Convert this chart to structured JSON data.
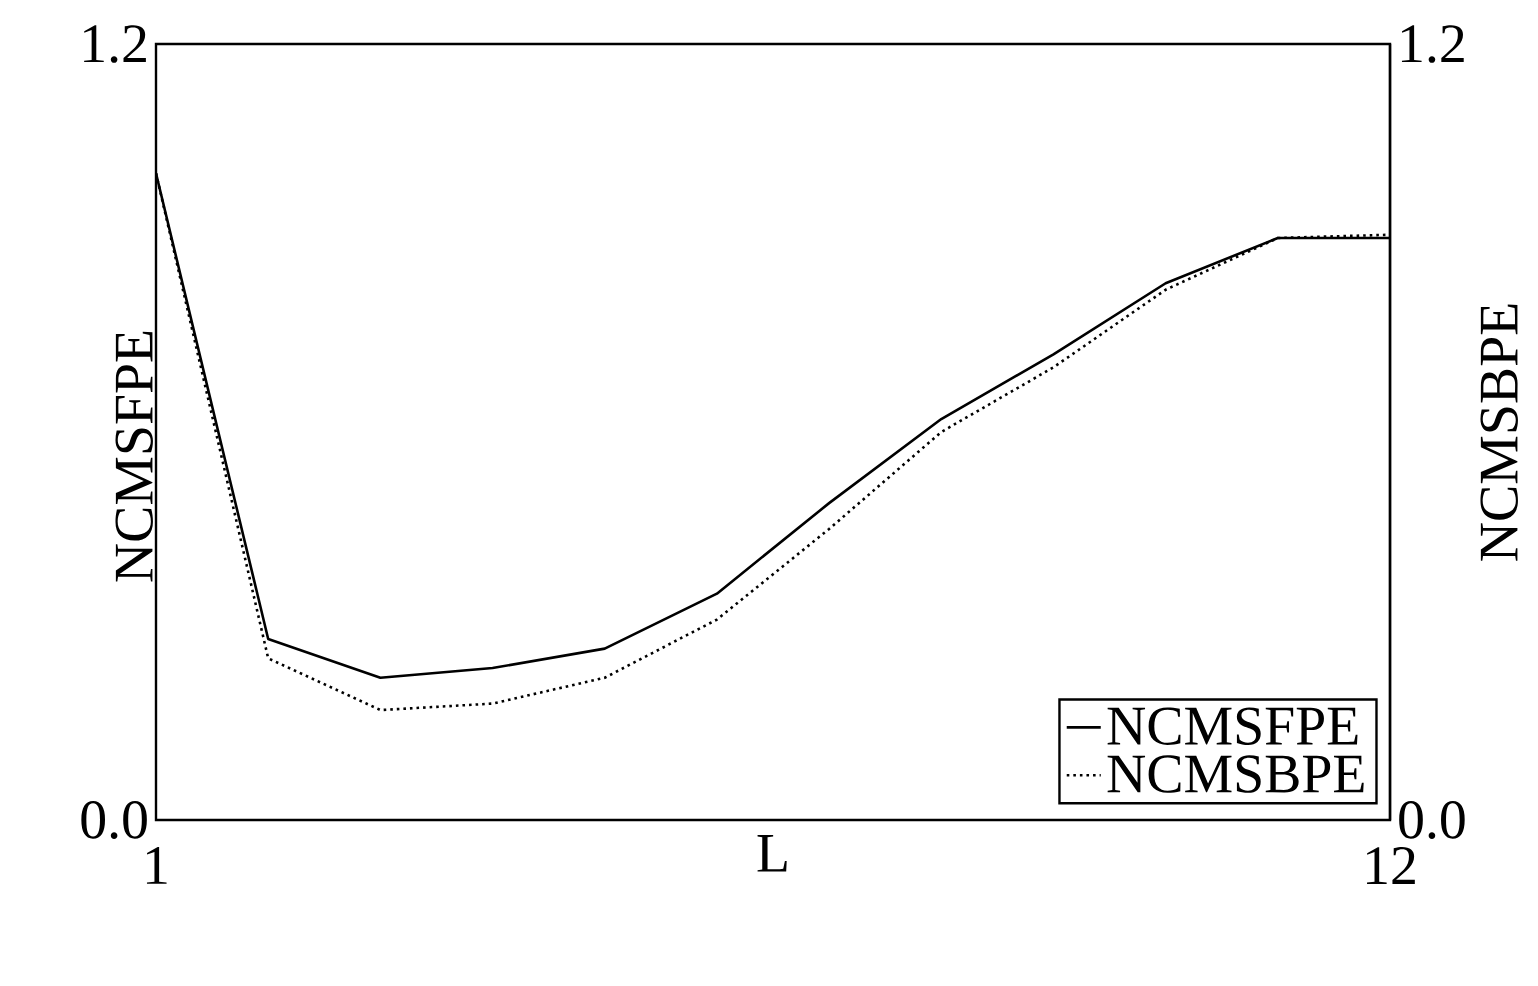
{
  "chart_data": {
    "type": "line",
    "xlabel": "L",
    "ylabel": "NCMSFPE",
    "y2label": "NCMSBPE",
    "x": [
      1,
      2,
      3,
      4,
      5,
      6,
      7,
      8,
      9,
      10,
      11,
      12
    ],
    "series": [
      {
        "name": "NCMSFPE",
        "color": "#000000",
        "line_style": "solid",
        "values": [
          1.0,
          0.28,
          0.22,
          0.235,
          0.265,
          0.35,
          0.49,
          0.62,
          0.72,
          0.83,
          0.9,
          0.9
        ]
      },
      {
        "name": "NCMSBPE",
        "color": "#000000",
        "line_style": "dotted",
        "axis": "y2",
        "values": [
          1.0,
          0.25,
          0.17,
          0.18,
          0.22,
          0.31,
          0.45,
          0.6,
          0.7,
          0.82,
          0.9,
          0.905
        ]
      }
    ],
    "xlim": [
      1,
      12
    ],
    "xticks": [
      1,
      12
    ],
    "ylim": [
      0,
      1.2
    ],
    "yticks": [
      {
        "value": 0,
        "label": "0.0"
      },
      1.2
    ],
    "y2lim": [
      0,
      1.2
    ],
    "y2ticks": [
      {
        "value": 0,
        "label": "0.0"
      },
      1.2
    ],
    "legend": "bottom right",
    "marker": "none"
  }
}
